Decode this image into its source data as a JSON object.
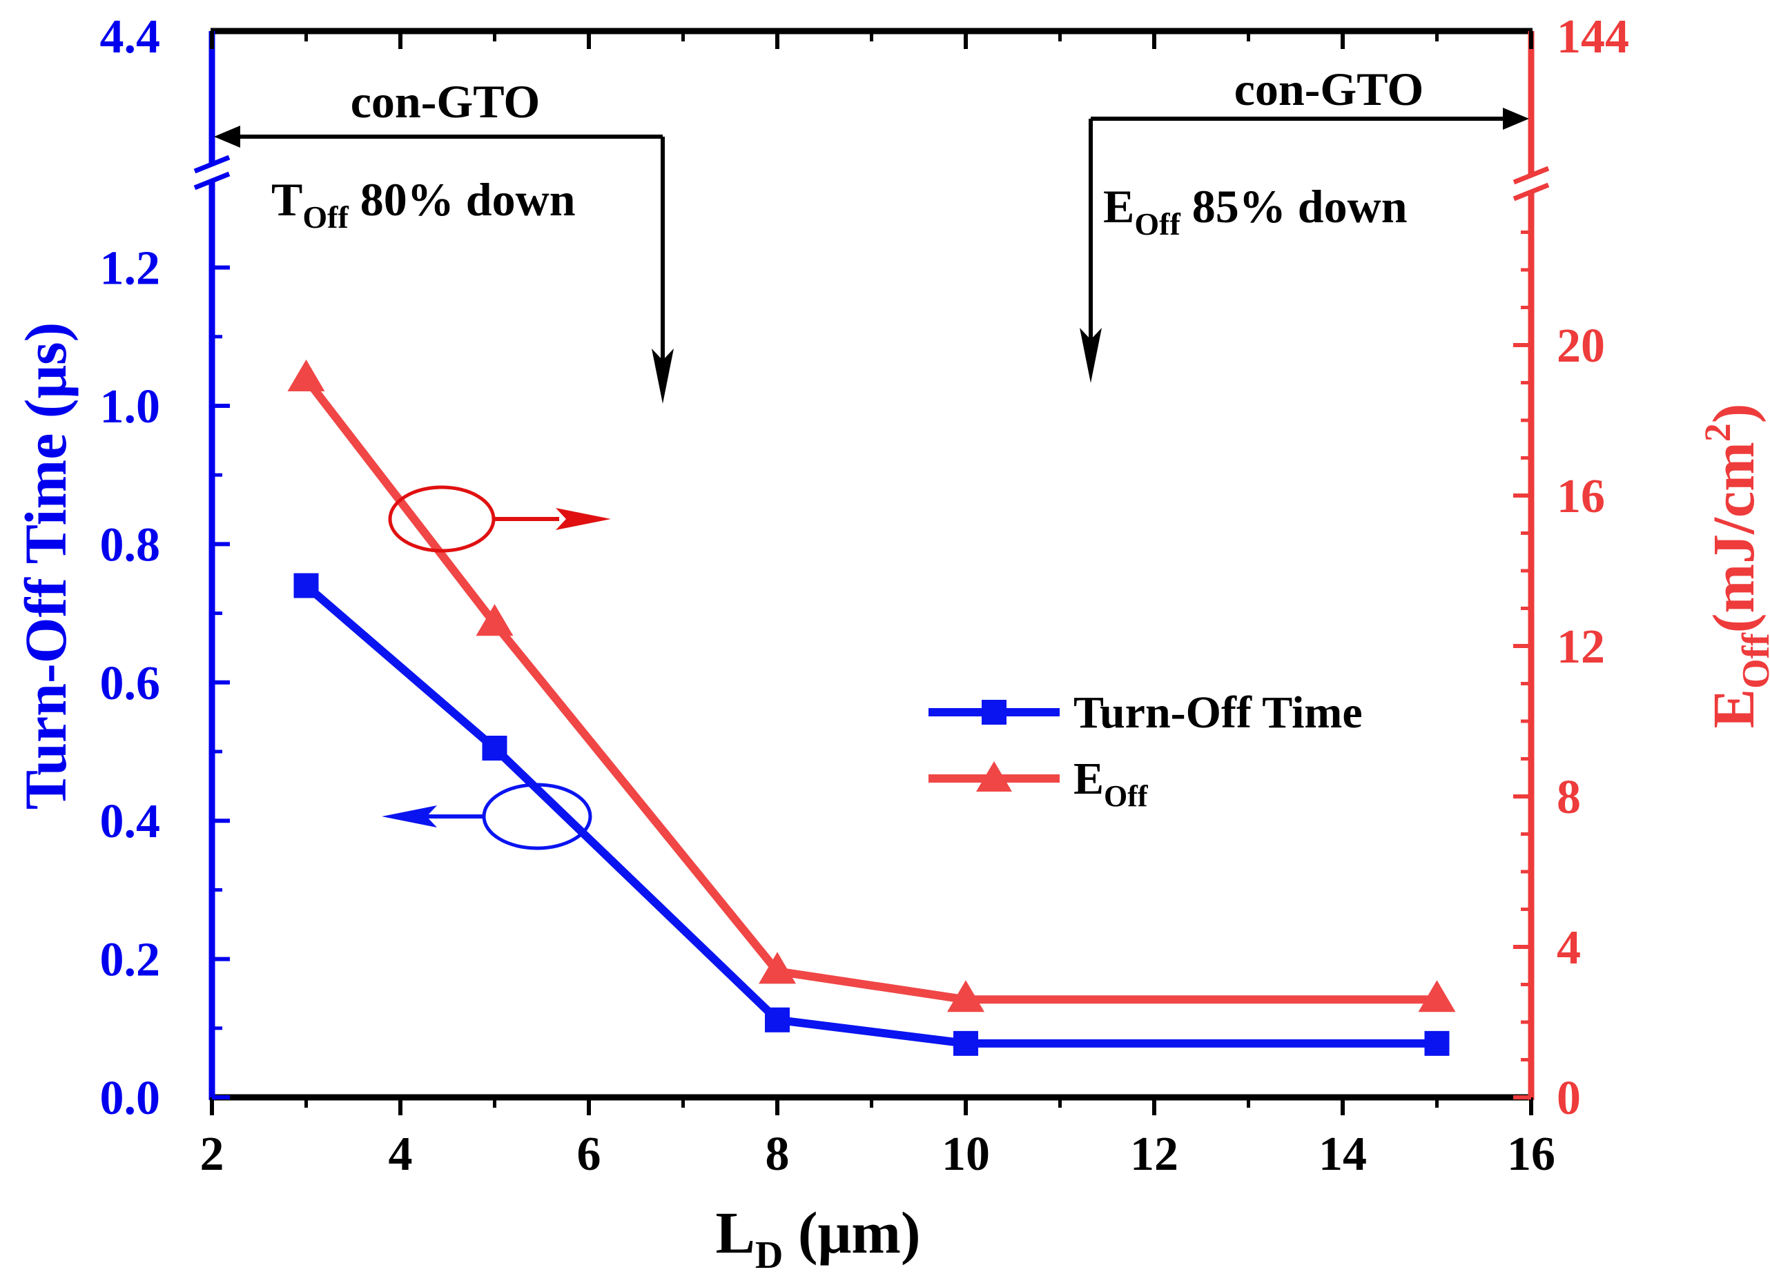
{
  "chart_data": {
    "type": "line",
    "xlabel_main": "L",
    "xlabel_sub": "D",
    "xlabel_unit": " (μm)",
    "ylabel_left": "Turn-Off Time (μs)",
    "ylabel_right_main": "E",
    "ylabel_right_sub": "Off",
    "ylabel_right_unit": "(mJ/cm",
    "ylabel_right_sup": "2",
    "ylabel_right_close": ")",
    "x_ticks": [
      "2",
      "4",
      "6",
      "8",
      "10",
      "12",
      "14",
      "16"
    ],
    "xlim": [
      2,
      16
    ],
    "y_left_ticks": [
      "0.0",
      "0.2",
      "0.4",
      "0.6",
      "0.8",
      "1.0",
      "1.2"
    ],
    "y_left_break_tick": "4.4",
    "ylim_left": [
      0,
      1.3
    ],
    "y_right_ticks": [
      "0",
      "4",
      "8",
      "12",
      "16",
      "20"
    ],
    "y_right_break_tick": "144",
    "ylim_right": [
      0,
      24
    ],
    "colors": {
      "left_axis": "#0000ee",
      "right_axis": "#ee3b3b",
      "series1": "#0a14f0",
      "series2": "#f04646",
      "annotation": "#000000",
      "ellipse_red": "#e01010"
    },
    "series": [
      {
        "name": "Turn-Off Time",
        "axis": "left",
        "marker": "square",
        "x": [
          3,
          5,
          8,
          10,
          15
        ],
        "values": [
          0.74,
          0.505,
          0.112,
          0.078,
          0.078
        ]
      },
      {
        "name": "E",
        "name_sub": "Off",
        "axis": "right",
        "marker": "triangle",
        "x": [
          3,
          5,
          8,
          10,
          15
        ],
        "values": [
          19.1,
          12.6,
          3.35,
          2.6,
          2.6
        ]
      }
    ],
    "legend": {
      "position": "center-right",
      "entries": [
        {
          "label": "Turn-Off Time"
        },
        {
          "label": "E",
          "sub": "Off"
        }
      ]
    },
    "annotations": {
      "left_label": "con-GTO",
      "left_note_main": "T",
      "left_note_sub": "Off",
      "left_note_rest": " 80% down",
      "right_label": "con-GTO",
      "right_note_main": "E",
      "right_note_sub": "Off",
      "right_note_rest": " 85% down"
    }
  }
}
